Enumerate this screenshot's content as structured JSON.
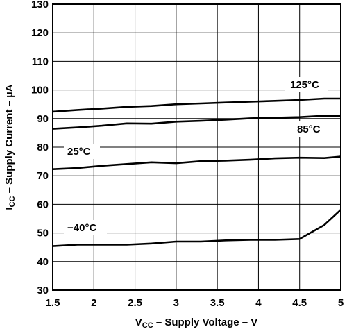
{
  "chart_data": {
    "type": "line",
    "title": "",
    "xlabel": {
      "main": "V",
      "sub": "CC",
      "rest": " – Supply Voltage – V"
    },
    "ylabel": {
      "main": "I",
      "sub": "CC",
      "rest": " – Supply Current – µA"
    },
    "xlim": [
      1.5,
      5
    ],
    "ylim": [
      30,
      130
    ],
    "x_ticks": [
      "1.5",
      "2",
      "2.5",
      "3",
      "3.5",
      "4",
      "4.5",
      "5"
    ],
    "y_ticks": [
      "30",
      "40",
      "50",
      "60",
      "70",
      "80",
      "90",
      "100",
      "110",
      "120",
      "130"
    ],
    "grid": true,
    "series": [
      {
        "name": "125°C",
        "x": [
          1.5,
          1.8,
          2.1,
          2.4,
          2.7,
          3.0,
          3.3,
          3.6,
          3.9,
          4.2,
          4.5,
          4.8,
          5.0
        ],
        "y": [
          92.4,
          93.0,
          93.5,
          94.1,
          94.4,
          95.0,
          95.3,
          95.6,
          95.9,
          96.2,
          96.5,
          97.0,
          97.0
        ]
      },
      {
        "name": "85°C",
        "x": [
          1.5,
          1.8,
          2.1,
          2.4,
          2.7,
          3.0,
          3.3,
          3.6,
          3.9,
          4.2,
          4.5,
          4.8,
          5.0
        ],
        "y": [
          86.4,
          86.9,
          87.5,
          88.3,
          88.2,
          88.9,
          89.2,
          89.6,
          90.1,
          90.3,
          90.5,
          91.0,
          91.0
        ]
      },
      {
        "name": "25°C",
        "x": [
          1.5,
          1.8,
          2.1,
          2.4,
          2.7,
          3.0,
          3.3,
          3.6,
          3.9,
          4.2,
          4.5,
          4.8,
          5.0
        ],
        "y": [
          72.3,
          72.7,
          73.5,
          74.1,
          74.7,
          74.4,
          75.1,
          75.3,
          75.6,
          76.1,
          76.3,
          76.2,
          76.7
        ]
      },
      {
        "name": "−40°C",
        "x": [
          1.5,
          1.8,
          2.1,
          2.4,
          2.7,
          3.0,
          3.3,
          3.6,
          3.9,
          4.2,
          4.5,
          4.8,
          5.0
        ],
        "y": [
          45.4,
          45.9,
          45.9,
          45.9,
          46.3,
          47.0,
          47.0,
          47.4,
          47.6,
          47.6,
          47.9,
          52.8,
          58.1
        ]
      }
    ]
  }
}
